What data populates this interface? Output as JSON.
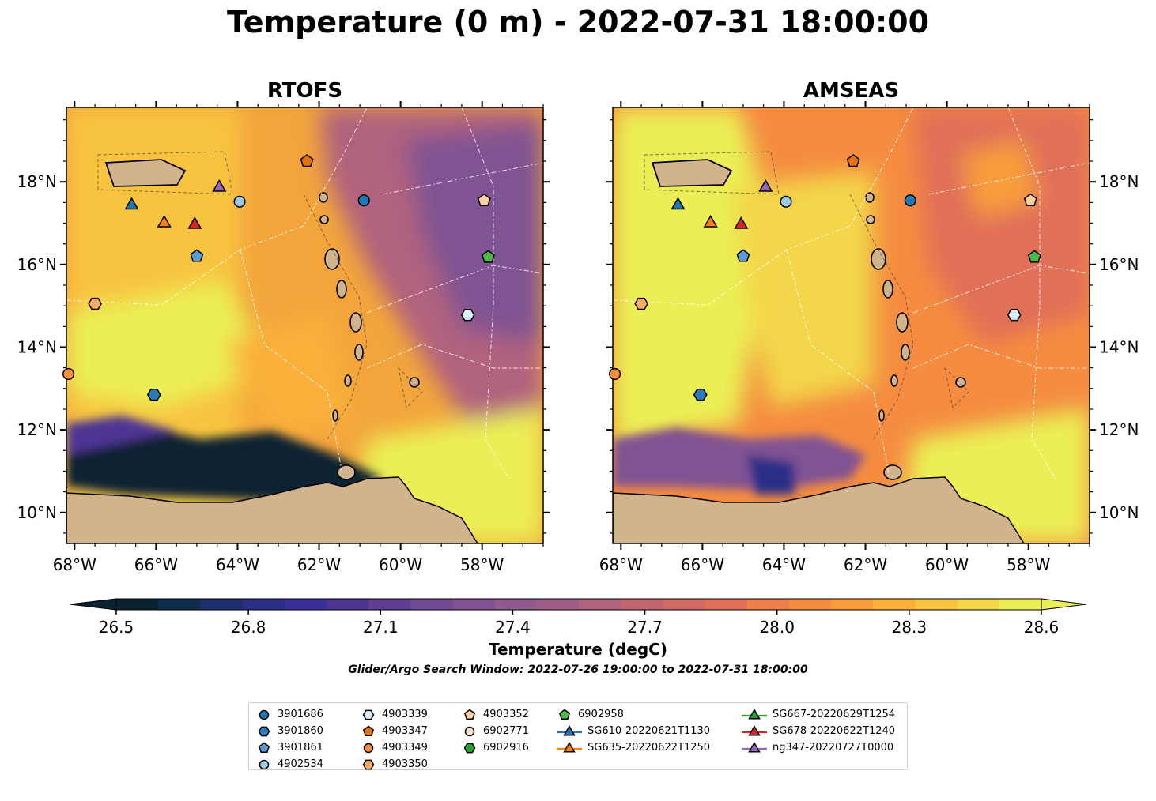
{
  "title": "Temperature (0 m) - 2022-07-31 18:00:00",
  "panels": [
    {
      "name": "RTOFS"
    },
    {
      "name": "AMSEAS"
    }
  ],
  "lat_labels": [
    "18°N",
    "16°N",
    "14°N",
    "12°N",
    "10°N"
  ],
  "lon_labels": [
    "68°W",
    "66°W",
    "64°W",
    "62°W",
    "60°W",
    "58°W"
  ],
  "map_extent": {
    "lon_min": -68.2,
    "lon_max": -56.5,
    "lat_min": 9.25,
    "lat_max": 19.8
  },
  "colorbar": {
    "label": "Temperature (degC)",
    "ticks": [
      "26.5",
      "26.8",
      "27.1",
      "27.4",
      "27.7",
      "28.0",
      "28.3",
      "28.6"
    ],
    "vmin": 26.5,
    "vmax": 28.6,
    "extend": "both",
    "colors": [
      "#0b2233",
      "#102c4c",
      "#1d2f6d",
      "#2c2f88",
      "#3b2f99",
      "#4d3493",
      "#613e92",
      "#704a92",
      "#805292",
      "#905a8e",
      "#a05e86",
      "#b0627e",
      "#c1666f",
      "#d06a64",
      "#e07058",
      "#ee7e4a",
      "#f58c40",
      "#f89d3a",
      "#fab03a",
      "#f8c440",
      "#f3d648",
      "#ebef55"
    ]
  },
  "search_window": "Glider/Argo Search Window: 2022-07-26 19:00:00 to 2022-07-31 18:00:00",
  "land_color": "#d2b48c",
  "markers": [
    {
      "name": "3901686",
      "shape": "circle",
      "color": "#1f77b4",
      "lon": -60.9,
      "lat": 17.55
    },
    {
      "name": "3901860",
      "shape": "hexagon",
      "color": "#2b7bba",
      "lon": -66.05,
      "lat": 12.85
    },
    {
      "name": "3901861",
      "shape": "pentagon",
      "color": "#5b9bd5",
      "lon": -65.0,
      "lat": 16.2
    },
    {
      "name": "4902534",
      "shape": "circle",
      "color": "#9ecae1",
      "lon": -63.95,
      "lat": 17.52
    },
    {
      "name": "4903339",
      "shape": "hexagon",
      "color": "#d8ecfb",
      "lon": -58.35,
      "lat": 14.78
    },
    {
      "name": "4903347",
      "shape": "pentagon",
      "color": "#e6720a",
      "lon": -62.3,
      "lat": 18.5
    },
    {
      "name": "4903349",
      "shape": "circle",
      "color": "#f98f3d",
      "lon": -68.15,
      "lat": 13.35
    },
    {
      "name": "4903350",
      "shape": "hexagon",
      "color": "#fbac5e",
      "lon": -67.5,
      "lat": 15.05
    },
    {
      "name": "4903352",
      "shape": "pentagon",
      "color": "#fdd0a2",
      "lon": -57.95,
      "lat": 17.55
    },
    {
      "name": "6902771",
      "shape": "circle",
      "color": "#fde3ca",
      "lon": null,
      "lat": null
    },
    {
      "name": "6902916",
      "shape": "hexagon",
      "color": "#2ca02c",
      "lon": null,
      "lat": null
    },
    {
      "name": "6902958",
      "shape": "pentagon",
      "color": "#4fb848",
      "lon": -57.85,
      "lat": 16.18
    }
  ],
  "gliders": [
    {
      "name": "SG610-20220621T1130",
      "color": "#1f77b4",
      "lon": -66.6,
      "lat": 17.45
    },
    {
      "name": "SG635-20220622T1250",
      "color": "#ff7f0e",
      "lon": -65.8,
      "lat": 17.02
    },
    {
      "name": "SG667-20220629T1254",
      "color": "#2ca02c",
      "lon": null,
      "lat": null
    },
    {
      "name": "SG678-20220622T1240",
      "color": "#d62728",
      "lon": -65.05,
      "lat": 16.98
    },
    {
      "name": "ng347-20220727T0000",
      "color": "#9467bd",
      "lon": -64.45,
      "lat": 17.88
    }
  ],
  "legend_columns": [
    [
      "3901686",
      "3901860",
      "3901861",
      "4902534"
    ],
    [
      "4903339",
      "4903347",
      "4903349",
      "4903350"
    ],
    [
      "4903352",
      "6902771",
      "6902916"
    ],
    [
      "6902958",
      "SG610-20220621T1130",
      "SG635-20220622T1250"
    ],
    [
      "SG667-20220629T1254",
      "SG678-20220622T1240",
      "ng347-20220727T0000"
    ]
  ]
}
